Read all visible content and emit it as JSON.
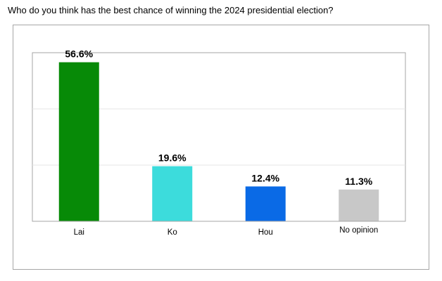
{
  "question": "Who do you think has the best chance of winning the 2024 presidential election?",
  "chart_data": {
    "type": "bar",
    "title": "Who do you think has the best chance of winning the 2024 presidential election?",
    "categories": [
      "Lai",
      "Ko",
      "Hou",
      "No opinion"
    ],
    "values": [
      56.6,
      19.6,
      12.4,
      11.3
    ],
    "value_labels": [
      "56.6%",
      "19.6%",
      "12.4%",
      "11.3%"
    ],
    "colors": [
      "#078a07",
      "#3cdcdc",
      "#0a6ae6",
      "#c8c8c8"
    ],
    "xlabel": "",
    "ylabel": "",
    "ylim": [
      0,
      60
    ],
    "grid": true,
    "legend": "none"
  }
}
